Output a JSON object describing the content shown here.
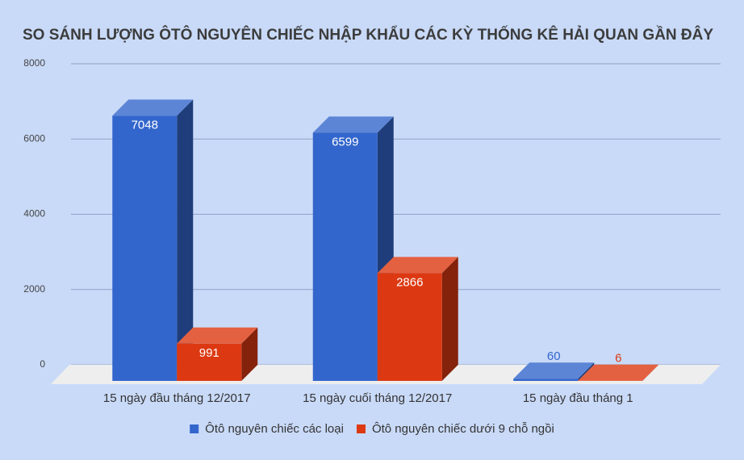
{
  "chart_data": {
    "type": "bar3d",
    "title": "SO SÁNH LƯỢNG ÔTÔ NGUYÊN CHIẾC NHẬP KHẨU CÁC KỲ THỐNG KÊ HẢI QUAN GẦN ĐÂY",
    "categories": [
      "15 ngày đầu tháng 12/2017",
      "15 ngày cuối tháng 12/2017",
      "15 ngày đầu tháng 1"
    ],
    "series": [
      {
        "name": "Ôtô nguyên chiếc các loại",
        "color": "#3366cc",
        "values": [
          7048,
          6599,
          60
        ]
      },
      {
        "name": "Ôtô nguyên chiếc dưới 9 chỗ ngồi",
        "color": "#dc3912",
        "values": [
          991,
          2866,
          6
        ]
      }
    ],
    "ylim": [
      0,
      8000
    ],
    "yticks": [
      0,
      2000,
      4000,
      6000,
      8000
    ],
    "grid": true
  }
}
